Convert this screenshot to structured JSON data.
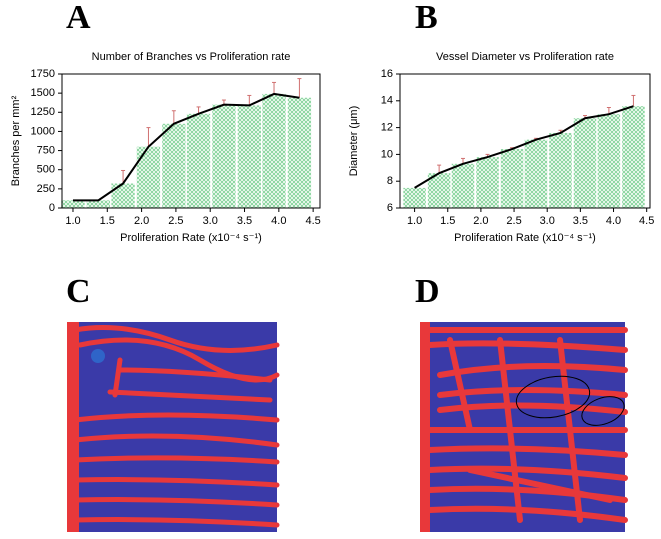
{
  "panels": [
    "A",
    "B",
    "C",
    "D"
  ],
  "chart_data": [
    {
      "type": "bar-line",
      "title": "Number of Branches vs Proliferation rate",
      "x_label": "Proliferation Rate (x10⁻⁴ s⁻¹)",
      "y_label": "Branches per mm²",
      "x": [
        1.0,
        1.37,
        1.73,
        2.1,
        2.47,
        2.83,
        3.2,
        3.57,
        3.93,
        4.3
      ],
      "values": [
        100,
        100,
        320,
        800,
        1100,
        1230,
        1350,
        1340,
        1490,
        1440
      ],
      "errors": [
        0,
        0,
        170,
        250,
        170,
        90,
        60,
        130,
        150,
        250
      ],
      "xlim": [
        0.84,
        4.6
      ],
      "ylim": [
        0,
        1750
      ],
      "xticks": [
        1.0,
        1.5,
        2.0,
        2.5,
        3.0,
        3.5,
        4.0,
        4.5
      ],
      "yticks": [
        0,
        250,
        500,
        750,
        1000,
        1250,
        1500,
        1750
      ],
      "color": "#5cc47a",
      "line_color": "#000000",
      "error_color": "#d07070"
    },
    {
      "type": "bar-line",
      "title": "Vessel Diameter vs Proliferation rate",
      "x_label": "Proliferation Rate (x10⁻⁴ s⁻¹)",
      "y_label": "Diameter (μm)",
      "x": [
        1.0,
        1.37,
        1.73,
        2.1,
        2.47,
        2.83,
        3.2,
        3.57,
        3.93,
        4.3
      ],
      "values": [
        7.5,
        8.6,
        9.3,
        9.8,
        10.4,
        11.1,
        11.6,
        12.7,
        13.0,
        13.6
      ],
      "errors": [
        0,
        0.6,
        0.4,
        0.2,
        0.1,
        0.1,
        0.2,
        0.2,
        0.5,
        0.8
      ],
      "xlim": [
        0.78,
        4.55
      ],
      "ylim": [
        6,
        16
      ],
      "xticks": [
        1.0,
        1.5,
        2.0,
        2.5,
        3.0,
        3.5,
        4.0,
        4.5
      ],
      "yticks": [
        6,
        8,
        10,
        12,
        14,
        16
      ],
      "color": "#5cc47a",
      "line_color": "#000000",
      "error_color": "#d07070"
    }
  ]
}
